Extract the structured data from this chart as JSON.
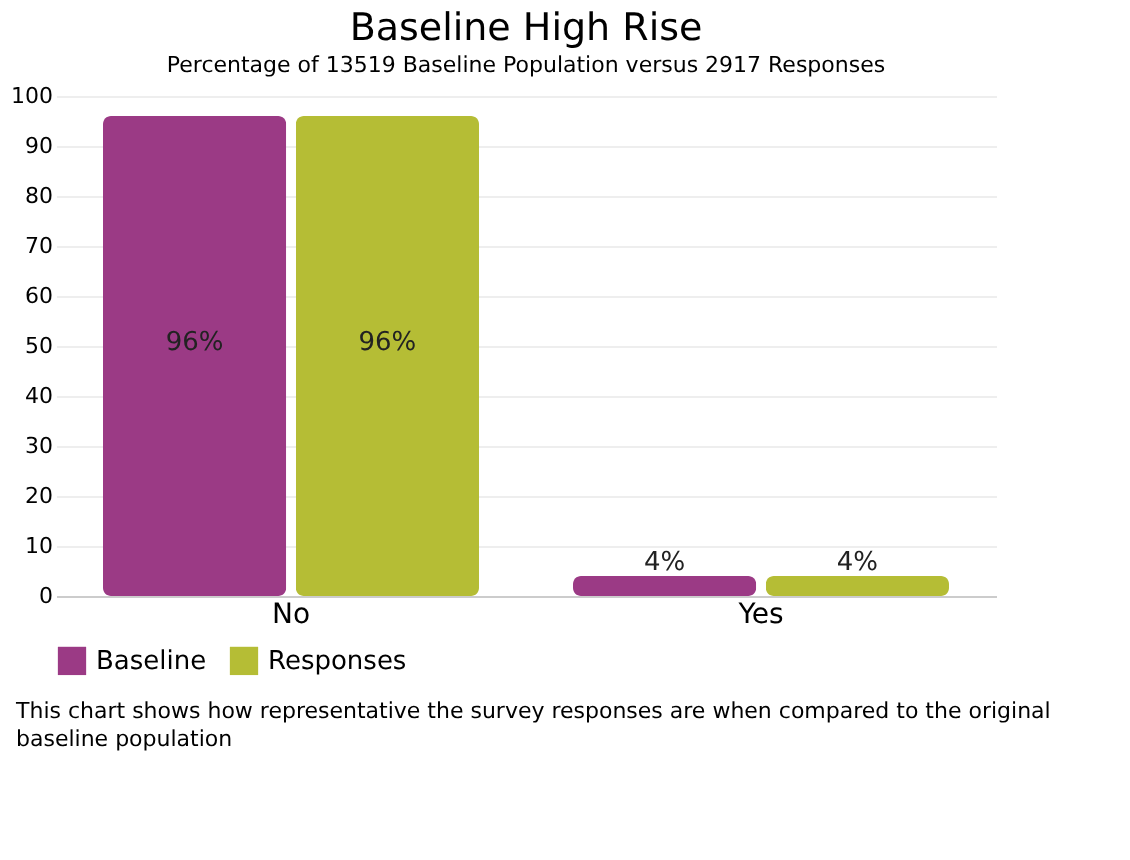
{
  "chart_data": {
    "type": "bar",
    "title": "Baseline High Rise",
    "subtitle": "Percentage of 13519 Baseline Population versus 2917 Responses",
    "categories": [
      "No",
      "Yes"
    ],
    "series": [
      {
        "name": "Baseline",
        "color": "#9b3a85",
        "values": [
          96,
          4
        ],
        "value_labels": [
          "96%",
          "4%"
        ]
      },
      {
        "name": "Responses",
        "color": "#b5bd35",
        "values": [
          96,
          4
        ],
        "value_labels": [
          "96%",
          "4%"
        ]
      }
    ],
    "ylim": [
      0,
      100
    ],
    "yticks": [
      0,
      10,
      20,
      30,
      40,
      50,
      60,
      70,
      80,
      90,
      100
    ],
    "grid": "y",
    "legend": "bottom left",
    "annotations": [
      "This chart shows how representative the survey responses are when compared to the original baseline population"
    ]
  }
}
